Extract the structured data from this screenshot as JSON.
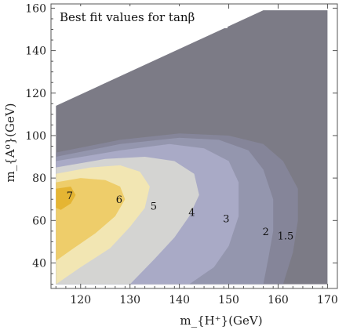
{
  "chart_data": {
    "type": "contour",
    "title": "Best fit values for tanβ",
    "xlabel": "m_{H⁺}(GeV)",
    "ylabel": "m_{A⁰}(GeV)",
    "xlim": [
      114,
      172
    ],
    "ylim": [
      28,
      162
    ],
    "xticks": [
      120,
      130,
      140,
      150,
      160,
      170
    ],
    "yticks": [
      40,
      60,
      80,
      100,
      120,
      140,
      160
    ],
    "grid": false,
    "contour_levels": [
      {
        "label": "1.5",
        "x": 161.5,
        "y": 53
      },
      {
        "label": "2",
        "x": 157.5,
        "y": 55
      },
      {
        "label": "3",
        "x": 149.5,
        "y": 61
      },
      {
        "label": "4",
        "x": 142.5,
        "y": 64
      },
      {
        "label": "5",
        "x": 134.8,
        "y": 67
      },
      {
        "label": "6",
        "x": 127.8,
        "y": 70
      },
      {
        "label": "7",
        "x": 117.8,
        "y": 72
      }
    ],
    "colors": {
      "outer": "#7c7b86",
      "band_1_5": "#858599",
      "band_2": "#9496ae",
      "band_3": "#a9aac6",
      "band_4": "#d4d4d2",
      "band_5": "#f2e6b3",
      "band_6": "#eecd6a",
      "band_7": "#e5b533"
    }
  }
}
